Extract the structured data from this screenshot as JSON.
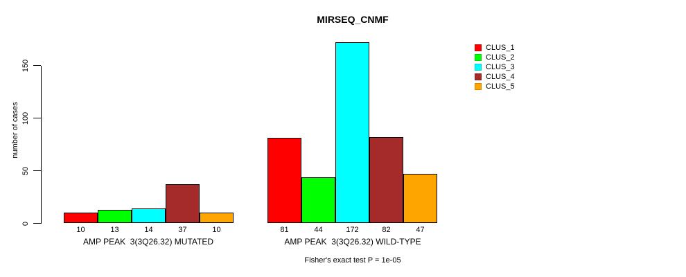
{
  "title": "MIRSEQ_CNMF",
  "ylabel": "number of cases",
  "footer": "Fisher's exact test P = 1e-05",
  "legend": [
    {
      "label": "CLUS_1",
      "color": "#FF0000"
    },
    {
      "label": "CLUS_2",
      "color": "#00FF00"
    },
    {
      "label": "CLUS_3",
      "color": "#00FFFF"
    },
    {
      "label": "CLUS_4",
      "color": "#A52A2A"
    },
    {
      "label": "CLUS_5",
      "color": "#FFA500"
    }
  ],
  "chart_data": {
    "type": "bar",
    "title": "MIRSEQ_CNMF",
    "xlabel": "",
    "ylabel": "number of cases",
    "ylim": [
      0,
      172
    ],
    "yticks": [
      0,
      50,
      100,
      150
    ],
    "grid": false,
    "legend_position": "right",
    "categories": [
      "AMP PEAK  3(3Q26.32) MUTATED",
      "AMP PEAK  3(3Q26.32) WILD-TYPE"
    ],
    "series": [
      {
        "name": "CLUS_1",
        "color": "#FF0000",
        "values": [
          10,
          81
        ]
      },
      {
        "name": "CLUS_2",
        "color": "#00FF00",
        "values": [
          13,
          44
        ]
      },
      {
        "name": "CLUS_3",
        "color": "#00FFFF",
        "values": [
          14,
          172
        ]
      },
      {
        "name": "CLUS_4",
        "color": "#A52A2A",
        "values": [
          37,
          82
        ]
      },
      {
        "name": "CLUS_5",
        "color": "#FFA500",
        "values": [
          10,
          47
        ]
      }
    ],
    "annotation": "Fisher's exact test P = 1e-05"
  }
}
